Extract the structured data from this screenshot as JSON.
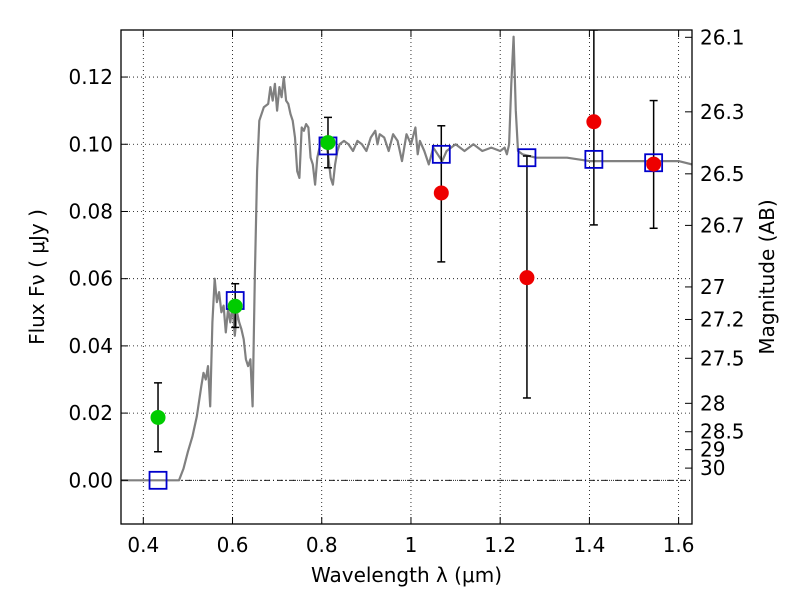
{
  "chart_data": {
    "type": "scatter",
    "xlabel": "Wavelength  λ (μm)",
    "ylabel": "Flux  Fν  ( μJy )",
    "y2label": "Magnitude (AB)",
    "xlim": [
      0.35,
      1.63
    ],
    "ylim": [
      -0.013,
      0.134
    ],
    "x_ticks": [
      "0.4",
      "0.6",
      "0.8",
      "1",
      "1.2",
      "1.4",
      "1.6"
    ],
    "x_tick_values": [
      0.4,
      0.6,
      0.8,
      1.0,
      1.2,
      1.4,
      1.6
    ],
    "y_ticks": [
      "0.00",
      "0.02",
      "0.04",
      "0.06",
      "0.08",
      "0.10",
      "0.12"
    ],
    "y_tick_values": [
      0.0,
      0.02,
      0.04,
      0.06,
      0.08,
      0.1,
      0.12
    ],
    "mag_ticks": [
      {
        "label": "26.1",
        "mag": 26.1
      },
      {
        "label": "26.3",
        "mag": 26.3
      },
      {
        "label": "26.5",
        "mag": 26.5
      },
      {
        "label": "26.7",
        "mag": 26.7
      },
      {
        "label": "27",
        "mag": 27.0
      },
      {
        "label": "27.2",
        "mag": 27.2
      },
      {
        "label": "27.5",
        "mag": 27.5
      },
      {
        "label": "28",
        "mag": 28.0
      },
      {
        "label": "28.5",
        "mag": 28.5
      },
      {
        "label": "29",
        "mag": 29.0
      },
      {
        "label": "30",
        "mag": 30.0
      }
    ],
    "grid": true,
    "series": [
      {
        "kind": "line",
        "color": "#808080",
        "points": [
          [
            0.35,
            0.0
          ],
          [
            0.48,
            0.0
          ],
          [
            0.49,
            0.0035
          ],
          [
            0.5,
            0.0085
          ],
          [
            0.51,
            0.013
          ],
          [
            0.52,
            0.019
          ],
          [
            0.53,
            0.028
          ],
          [
            0.535,
            0.032
          ],
          [
            0.54,
            0.03
          ],
          [
            0.545,
            0.034
          ],
          [
            0.55,
            0.022
          ],
          [
            0.555,
            0.047
          ],
          [
            0.56,
            0.06
          ],
          [
            0.565,
            0.053
          ],
          [
            0.57,
            0.056
          ],
          [
            0.575,
            0.05
          ],
          [
            0.58,
            0.052
          ],
          [
            0.585,
            0.044
          ],
          [
            0.59,
            0.051
          ],
          [
            0.595,
            0.047
          ],
          [
            0.6,
            0.052
          ],
          [
            0.605,
            0.043
          ],
          [
            0.61,
            0.05
          ],
          [
            0.615,
            0.047
          ],
          [
            0.62,
            0.045
          ],
          [
            0.625,
            0.042
          ],
          [
            0.63,
            0.036
          ],
          [
            0.635,
            0.034
          ],
          [
            0.64,
            0.036
          ],
          [
            0.645,
            0.022
          ],
          [
            0.65,
            0.06
          ],
          [
            0.655,
            0.092
          ],
          [
            0.66,
            0.107
          ],
          [
            0.67,
            0.111
          ],
          [
            0.68,
            0.112
          ],
          [
            0.685,
            0.117
          ],
          [
            0.69,
            0.113
          ],
          [
            0.695,
            0.118
          ],
          [
            0.7,
            0.11
          ],
          [
            0.705,
            0.117
          ],
          [
            0.71,
            0.114
          ],
          [
            0.715,
            0.12
          ],
          [
            0.72,
            0.113
          ],
          [
            0.725,
            0.112
          ],
          [
            0.73,
            0.109
          ],
          [
            0.735,
            0.107
          ],
          [
            0.74,
            0.102
          ],
          [
            0.745,
            0.092
          ],
          [
            0.75,
            0.09
          ],
          [
            0.755,
            0.105
          ],
          [
            0.76,
            0.104
          ],
          [
            0.765,
            0.106
          ],
          [
            0.77,
            0.105
          ],
          [
            0.775,
            0.096
          ],
          [
            0.78,
            0.094
          ],
          [
            0.785,
            0.088
          ],
          [
            0.79,
            0.096
          ],
          [
            0.795,
            0.099
          ],
          [
            0.8,
            0.102
          ],
          [
            0.81,
            0.101
          ],
          [
            0.815,
            0.096
          ],
          [
            0.82,
            0.09
          ],
          [
            0.825,
            0.088
          ],
          [
            0.83,
            0.094
          ],
          [
            0.835,
            0.098
          ],
          [
            0.84,
            0.1
          ],
          [
            0.85,
            0.101
          ],
          [
            0.86,
            0.1
          ],
          [
            0.87,
            0.098
          ],
          [
            0.88,
            0.101
          ],
          [
            0.89,
            0.1
          ],
          [
            0.9,
            0.098
          ],
          [
            0.91,
            0.102
          ],
          [
            0.92,
            0.104
          ],
          [
            0.925,
            0.1
          ],
          [
            0.93,
            0.103
          ],
          [
            0.94,
            0.102
          ],
          [
            0.95,
            0.098
          ],
          [
            0.96,
            0.103
          ],
          [
            0.97,
            0.101
          ],
          [
            0.98,
            0.095
          ],
          [
            0.99,
            0.103
          ],
          [
            1.0,
            0.1
          ],
          [
            1.01,
            0.105
          ],
          [
            1.015,
            0.097
          ],
          [
            1.02,
            0.101
          ],
          [
            1.03,
            0.098
          ],
          [
            1.04,
            0.094
          ],
          [
            1.05,
            0.099
          ],
          [
            1.06,
            0.097
          ],
          [
            1.07,
            0.095
          ],
          [
            1.08,
            0.098
          ],
          [
            1.09,
            0.099
          ],
          [
            1.1,
            0.1
          ],
          [
            1.12,
            0.098
          ],
          [
            1.14,
            0.1
          ],
          [
            1.16,
            0.098
          ],
          [
            1.18,
            0.099
          ],
          [
            1.2,
            0.098
          ],
          [
            1.21,
            0.099
          ],
          [
            1.215,
            0.097
          ],
          [
            1.22,
            0.1
          ],
          [
            1.225,
            0.118
          ],
          [
            1.23,
            0.132
          ],
          [
            1.235,
            0.11
          ],
          [
            1.24,
            0.098
          ],
          [
            1.25,
            0.097
          ],
          [
            1.28,
            0.096
          ],
          [
            1.31,
            0.096
          ],
          [
            1.35,
            0.096
          ],
          [
            1.4,
            0.095
          ],
          [
            1.45,
            0.095
          ],
          [
            1.5,
            0.095
          ],
          [
            1.55,
            0.095
          ],
          [
            1.6,
            0.095
          ],
          [
            1.63,
            0.094
          ]
        ]
      },
      {
        "kind": "errorbar",
        "color": "#000000",
        "bars": [
          {
            "x": 0.433,
            "low": 0.0085,
            "high": 0.029
          },
          {
            "x": 0.606,
            "low": 0.0455,
            "high": 0.0585
          },
          {
            "x": 0.814,
            "low": 0.093,
            "high": 0.108
          },
          {
            "x": 1.068,
            "low": 0.065,
            "high": 0.1055
          },
          {
            "x": 1.26,
            "low": 0.0245,
            "high": 0.0965
          },
          {
            "x": 1.41,
            "low": 0.076,
            "high": 0.134
          },
          {
            "x": 1.544,
            "low": 0.075,
            "high": 0.113
          }
        ]
      },
      {
        "kind": "square",
        "color": "#0000cc",
        "points": [
          [
            0.433,
            0.0
          ],
          [
            0.606,
            0.0535
          ],
          [
            0.814,
            0.0995
          ],
          [
            1.068,
            0.097
          ],
          [
            1.26,
            0.096
          ],
          [
            1.41,
            0.0955
          ],
          [
            1.544,
            0.0945
          ]
        ]
      },
      {
        "kind": "circle",
        "color": "#00cc00",
        "points": [
          [
            0.433,
            0.0187
          ],
          [
            0.606,
            0.0518
          ],
          [
            0.814,
            0.1005
          ]
        ]
      },
      {
        "kind": "circle",
        "color": "#ee0000",
        "points": [
          [
            1.068,
            0.0855
          ],
          [
            1.26,
            0.0603
          ],
          [
            1.41,
            0.1067
          ],
          [
            1.544,
            0.0941
          ]
        ]
      }
    ],
    "hline": {
      "y": 0.0,
      "style": "dash-dot",
      "color": "#000000"
    }
  }
}
